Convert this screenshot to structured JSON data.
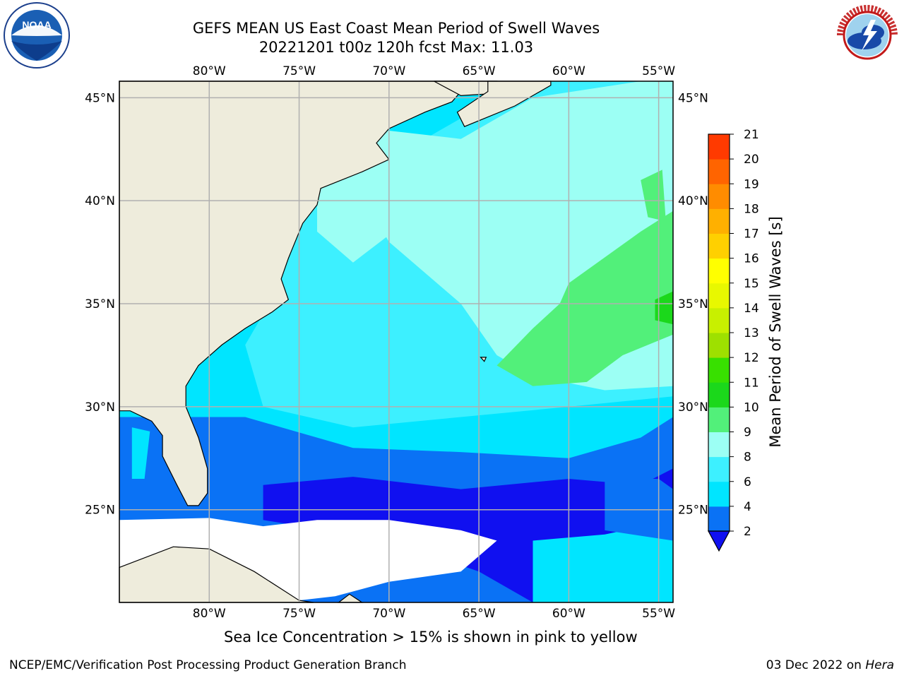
{
  "header": {
    "title_line1": "GEFS MEAN US East Coast Mean Period of Swell Waves",
    "title_line2": "20221201 t00z 120h fcst   Max: 11.03"
  },
  "map": {
    "lon_labels": [
      "80°W",
      "75°W",
      "70°W",
      "65°W",
      "60°W",
      "55°W"
    ],
    "lat_labels": [
      "45°N",
      "40°N",
      "35°N",
      "30°N",
      "25°N"
    ],
    "extent": {
      "lon": [
        -85,
        -54.2
      ],
      "lat": [
        20.5,
        45.8
      ]
    },
    "land_color": "#eeecdc",
    "grid_color": "#b0b0b0"
  },
  "colorbar": {
    "label": "Mean Period of Swell Waves [s]",
    "ticks": [
      "2",
      "4",
      "6",
      "8",
      "9",
      "10",
      "11",
      "12",
      "13",
      "14",
      "15",
      "16",
      "17",
      "18",
      "19",
      "20",
      "21"
    ],
    "colors": [
      "#0a72f5",
      "#00e5ff",
      "#3df0ff",
      "#9cfff4",
      "#52f07a",
      "#1bd81b",
      "#38e000",
      "#9ee000",
      "#c8f000",
      "#e8f800",
      "#ffff00",
      "#ffd000",
      "#ffb000",
      "#ff8c00",
      "#ff6400",
      "#ff3a00",
      "#ff0000"
    ],
    "under_color": "#1010f0"
  },
  "notes": {
    "ice": "Sea Ice Concentration > 15% is shown in pink to yellow"
  },
  "footer": {
    "left": "NCEP/EMC/Verification Post Processing Product Generation Branch",
    "right_date": "03 Dec 2022 on ",
    "right_machine": "Hera"
  },
  "logos": {
    "noaa": "NOAA",
    "nws": "NATIONAL WEATHER SERVICE"
  }
}
